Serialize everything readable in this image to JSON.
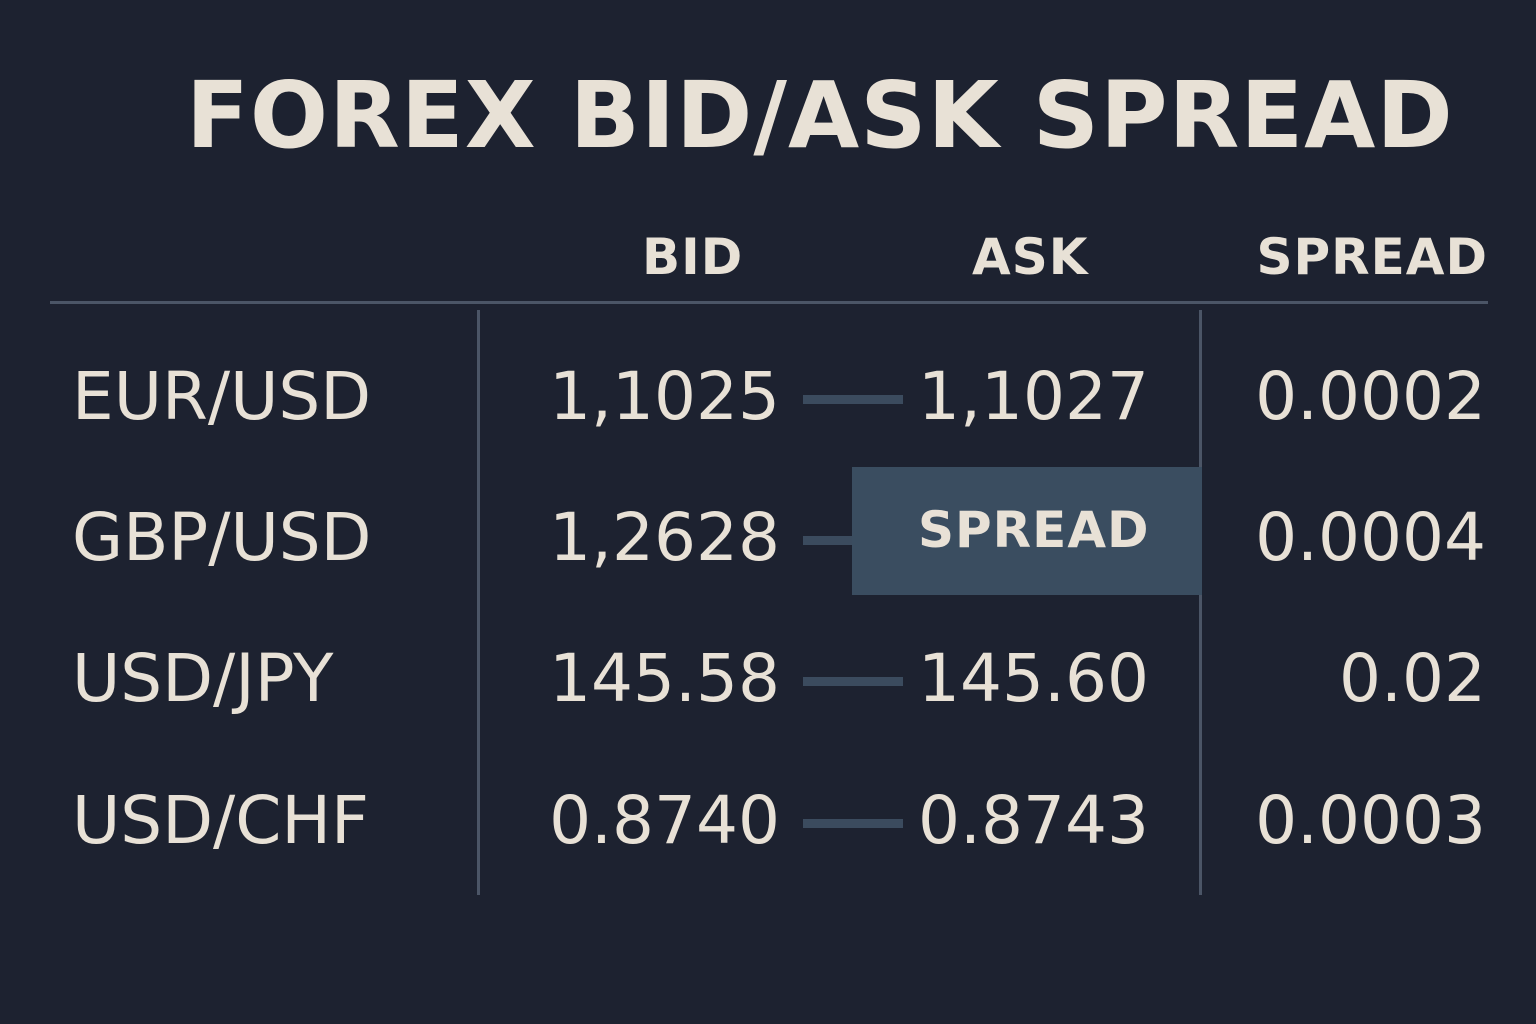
{
  "title": "FOREX BID/ASK SPREAD",
  "columns": {
    "bid": "BID",
    "ask": "ASK",
    "spread": "SPREAD"
  },
  "rows": [
    {
      "pair": "EUR/USD",
      "bid": "1,1025",
      "ask": "1,1027",
      "spread": "0.0002"
    },
    {
      "pair": "GBP/USD",
      "bid": "1,2628",
      "ask": "",
      "spread": "0.0004"
    },
    {
      "pair": "USD/JPY",
      "bid": "145.58",
      "ask": "145.60",
      "spread": "0.02"
    },
    {
      "pair": "USD/CHF",
      "bid": "0.8740",
      "ask": "0.8743",
      "spread": "0.0003"
    }
  ],
  "highlight": {
    "label": "SPREAD"
  },
  "colors": {
    "background": "#1d2230",
    "text": "#e8e1d6",
    "rule": "#4b5566",
    "highlight_box": "#3a4d60",
    "connector": "#3b4b5e"
  }
}
